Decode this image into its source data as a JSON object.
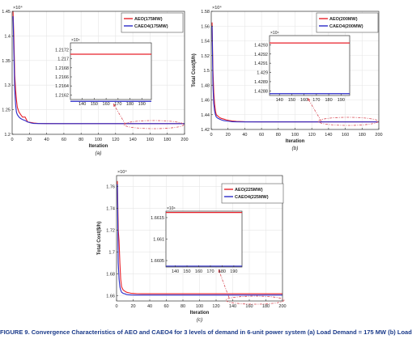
{
  "colors": {
    "aeo": "#e8212a",
    "caeo4": "#2a2ac8",
    "ellipse": "#d8505a",
    "axis": "#333333",
    "grid": "#e6e6e6"
  },
  "chart_data": [
    {
      "type": "line",
      "panel_label": "(a)",
      "xlabel": "Iteration",
      "ylabel": "Total Cost($/h)",
      "exponent": "×10⁴",
      "xlim": [
        0,
        200
      ],
      "ylim": [
        1.2,
        1.45
      ],
      "xticks": [
        0,
        20,
        40,
        60,
        80,
        100,
        120,
        140,
        160,
        180,
        200
      ],
      "yticks": [
        1.2,
        1.25,
        1.3,
        1.35,
        1.4,
        1.45
      ],
      "ytick_labels": [
        "1.2",
        "1.25",
        "1.3",
        "1.35",
        "1.4",
        "1.45"
      ],
      "grid": true,
      "legend_position": "top-right",
      "series": [
        {
          "name": "AEO(175MW)",
          "color": "#e8212a",
          "x": [
            1,
            2,
            3,
            4,
            5,
            6,
            8,
            10,
            12,
            15,
            18,
            22,
            25,
            30,
            40,
            60,
            100,
            150,
            200
          ],
          "y": [
            1.45,
            1.4,
            1.32,
            1.29,
            1.27,
            1.255,
            1.245,
            1.24,
            1.235,
            1.235,
            1.225,
            1.224,
            1.223,
            1.222,
            1.2218,
            1.2217,
            1.2217,
            1.2217,
            1.2217
          ]
        },
        {
          "name": "CAEO4(175MW)",
          "color": "#2a2ac8",
          "x": [
            1,
            2,
            3,
            4,
            5,
            6,
            8,
            10,
            12,
            15,
            18,
            22,
            25,
            30,
            40,
            60,
            100,
            150,
            200
          ],
          "y": [
            1.44,
            1.37,
            1.29,
            1.26,
            1.245,
            1.24,
            1.235,
            1.232,
            1.23,
            1.228,
            1.225,
            1.223,
            1.222,
            1.2218,
            1.2217,
            1.2217,
            1.2217,
            1.2217,
            1.2217
          ]
        }
      ],
      "inset": {
        "exponent": "×10⁴",
        "xlim": [
          130,
          198
        ],
        "ylim": [
          1.2161,
          1.21735
        ],
        "xticks": [
          140,
          150,
          160,
          170,
          180,
          190
        ],
        "yticks": [
          1.2162,
          1.2164,
          1.2166,
          1.2168,
          1.217,
          1.2172
        ],
        "ytick_labels": [
          "1.2162",
          "1.2164",
          "1.2166",
          "1.2168",
          "1.217",
          "1.2172"
        ],
        "aeo_y": 1.2171,
        "caeo4_y": 1.21606
      }
    },
    {
      "type": "line",
      "panel_label": "(b)",
      "xlabel": "Iteration",
      "ylabel": "Total Cost($/h)",
      "exponent": "×10⁴",
      "xlim": [
        0,
        200
      ],
      "ylim": [
        1.42,
        1.58
      ],
      "xticks": [
        0,
        20,
        40,
        60,
        80,
        100,
        120,
        140,
        160,
        180,
        200
      ],
      "yticks": [
        1.42,
        1.44,
        1.46,
        1.48,
        1.5,
        1.52,
        1.54,
        1.56,
        1.58
      ],
      "ytick_labels": [
        "1.42",
        "1.44",
        "1.46",
        "1.48",
        "1.5",
        "1.52",
        "1.54",
        "1.56",
        "1.58"
      ],
      "grid": true,
      "legend_position": "top-right",
      "series": [
        {
          "name": "AEO(200MW)",
          "color": "#e8212a",
          "x": [
            1,
            2,
            3,
            4,
            5,
            6,
            8,
            10,
            12,
            15,
            18,
            22,
            25,
            30,
            40,
            60,
            100,
            150,
            200
          ],
          "y": [
            1.565,
            1.5,
            1.47,
            1.455,
            1.445,
            1.44,
            1.438,
            1.436,
            1.435,
            1.434,
            1.433,
            1.432,
            1.4315,
            1.431,
            1.4305,
            1.4303,
            1.4303,
            1.4303,
            1.4303
          ]
        },
        {
          "name": "CAEO4(200MW)",
          "color": "#2a2ac8",
          "x": [
            1,
            2,
            3,
            4,
            5,
            6,
            8,
            10,
            12,
            15,
            18,
            22,
            25,
            30,
            40,
            60,
            100,
            150,
            200
          ],
          "y": [
            1.56,
            1.48,
            1.455,
            1.445,
            1.44,
            1.437,
            1.435,
            1.434,
            1.433,
            1.432,
            1.4315,
            1.431,
            1.4305,
            1.4303,
            1.4302,
            1.4302,
            1.4302,
            1.4302,
            1.4302
          ]
        }
      ],
      "inset": {
        "exponent": "×10⁴",
        "xlim": [
          132,
          197
        ],
        "ylim": [
          1.42875,
          1.4294
        ],
        "xticks": [
          140,
          150,
          160,
          170,
          180,
          190
        ],
        "yticks": [
          1.4288,
          1.4289,
          1.429,
          1.4291,
          1.4292,
          1.4293
        ],
        "ytick_labels": [
          "1.4288",
          "1.4289",
          "1.429",
          "1.4291",
          "1.4292",
          "1.4293"
        ],
        "aeo_y": 1.42932,
        "caeo4_y": 1.42877
      }
    },
    {
      "type": "line",
      "panel_label": "(c)",
      "xlabel": "Iteration",
      "ylabel": "Total Cost($/h)",
      "exponent": "×10⁴",
      "xlim": [
        0,
        200
      ],
      "ylim": [
        1.655,
        1.77
      ],
      "xticks": [
        0,
        20,
        40,
        60,
        80,
        100,
        120,
        140,
        160,
        180,
        200
      ],
      "yticks": [
        1.66,
        1.68,
        1.7,
        1.72,
        1.74,
        1.76
      ],
      "ytick_labels": [
        "1.66",
        "1.68",
        "1.7",
        "1.72",
        "1.74",
        "1.76"
      ],
      "grid": true,
      "legend_position": "top-right",
      "series": [
        {
          "name": "AEO(225MW)",
          "color": "#e8212a",
          "x": [
            1,
            2,
            3,
            4,
            5,
            6,
            8,
            10,
            12,
            15,
            18,
            22,
            25,
            30,
            40,
            60,
            100,
            150,
            200
          ],
          "y": [
            1.765,
            1.72,
            1.71,
            1.69,
            1.675,
            1.668,
            1.665,
            1.664,
            1.663,
            1.6625,
            1.662,
            1.6618,
            1.6617,
            1.6616,
            1.6616,
            1.6616,
            1.6616,
            1.6616,
            1.6616
          ]
        },
        {
          "name": "CAEO4(225MW)",
          "color": "#2a2ac8",
          "x": [
            1,
            2,
            3,
            4,
            5,
            6,
            8,
            10,
            12,
            15,
            18,
            22,
            25,
            30,
            40,
            60,
            100,
            150,
            200
          ],
          "y": [
            1.762,
            1.69,
            1.675,
            1.668,
            1.665,
            1.663,
            1.662,
            1.6615,
            1.661,
            1.6607,
            1.6605,
            1.6604,
            1.6604,
            1.6604,
            1.6604,
            1.6604,
            1.6604,
            1.6604,
            1.6604
          ]
        }
      ],
      "inset": {
        "exponent": "×10⁴",
        "xlim": [
          132,
          197
        ],
        "ylim": [
          1.66035,
          1.66165
        ],
        "xticks": [
          140,
          150,
          160,
          170,
          180,
          190
        ],
        "yticks": [
          1.6605,
          1.661,
          1.6615
        ],
        "ytick_labels": [
          "1.6605",
          "1.661",
          "1.6615"
        ],
        "aeo_y": 1.66162,
        "caeo4_y": 1.66037
      }
    }
  ],
  "caption": "FIGURE 9.   Convergence Characteristics of AEO and CAEO4 for 3 levels of demand in 6-unit power system (a) Load Demand = 175 MW (b) Load"
}
